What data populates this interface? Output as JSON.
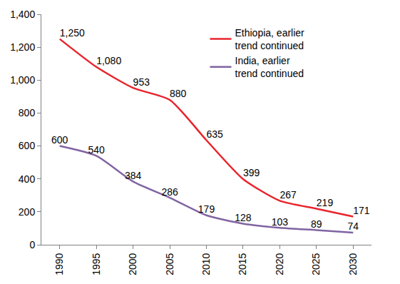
{
  "chart_data": {
    "type": "line",
    "categories": [
      "1990",
      "1995",
      "2000",
      "2005",
      "2010",
      "2015",
      "2020",
      "2025",
      "2030"
    ],
    "series": [
      {
        "name": "Ethiopia, earlier trend continued",
        "color": "#e8242c",
        "values": [
          1250,
          1080,
          953,
          880,
          635,
          399,
          267,
          219,
          171
        ],
        "value_labels": [
          "1,250",
          "1,080",
          "953",
          "880",
          "635",
          "399",
          "267",
          "219",
          "171"
        ]
      },
      {
        "name": "India, earlier trend continued",
        "color": "#8064a2",
        "values": [
          600,
          540,
          384,
          286,
          179,
          128,
          103,
          89,
          74
        ]
      }
    ],
    "ylim": [
      0,
      1400
    ],
    "yticks": [
      0,
      200,
      400,
      600,
      800,
      {
        "value": 1000,
        "label": "1,000"
      },
      {
        "value": 1200,
        "label": "1,200"
      },
      {
        "value": 1400,
        "label": "1,400"
      }
    ],
    "grid": false,
    "legend": "top right",
    "data_labels": true
  }
}
